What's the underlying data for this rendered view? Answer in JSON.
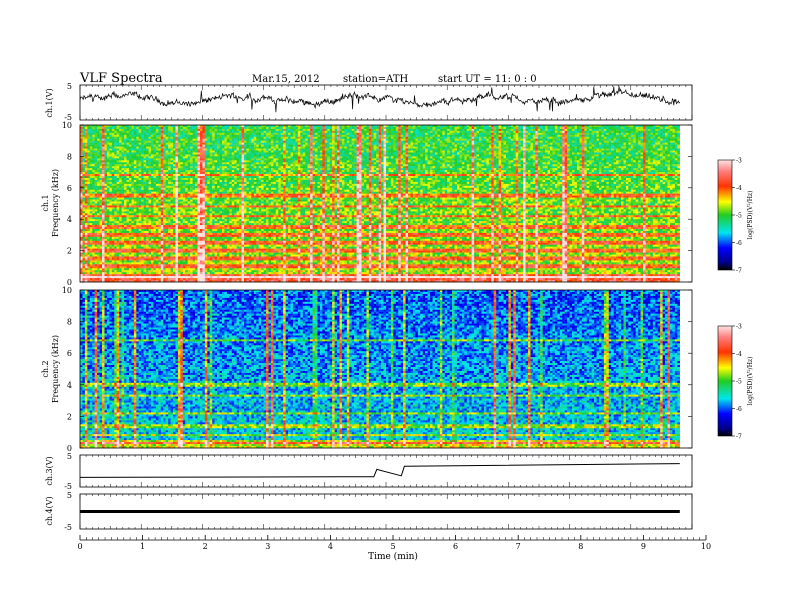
{
  "header": {
    "title": "VLF  Spectra",
    "date": "Mar.15, 2012",
    "station": "station=ATH",
    "start": "start  UT  =    11: 0  : 0"
  },
  "chart_data": [
    {
      "type": "line",
      "name": "ch1-waveform",
      "ylabel": "ch.1(V)",
      "ylim": [
        -5,
        5
      ],
      "yticks": [
        "5",
        "-5"
      ],
      "xlim": [
        0,
        10
      ]
    },
    {
      "type": "heatmap",
      "name": "ch1-spectrogram",
      "ylabel": "ch.1\nFrequency  (kHz)",
      "ylabel_lines": [
        "ch.1",
        "Frequency  (kHz)"
      ],
      "ylim": [
        0,
        10
      ],
      "yticks": [
        "0",
        "2",
        "4",
        "6",
        "8",
        "10"
      ],
      "xlim": [
        0,
        9.8
      ],
      "colorbar": {
        "label": "log(PSD)(V²/Hz)",
        "range": [
          -7,
          -3
        ],
        "ticks": [
          "-3",
          "-4",
          "-5",
          "-6",
          "-7"
        ]
      },
      "base_level": -4.7,
      "hum_bands_khz": [
        0.3,
        1.0,
        1.5,
        2.0,
        2.5,
        3.0,
        3.5,
        4.2,
        4.8,
        5.5,
        6.8
      ],
      "sferic_density": 0.6
    },
    {
      "type": "heatmap",
      "name": "ch2-spectrogram",
      "ylabel": "ch.2\nFrequency  (kHz)",
      "ylabel_lines": [
        "ch.2",
        "Frequency  (kHz)"
      ],
      "ylim": [
        0,
        10
      ],
      "yticks": [
        "0",
        "2",
        "4",
        "6",
        "8",
        "10"
      ],
      "xlim": [
        0,
        9.8
      ],
      "colorbar": {
        "label": "log(PSD)(V²/Hz)",
        "range": [
          -7,
          -3
        ],
        "ticks": [
          "-3",
          "-4",
          "-5",
          "-6",
          "-7"
        ]
      },
      "base_level": -5.6,
      "hum_bands_khz": [
        0.3,
        0.8,
        1.4,
        2.2,
        3.3,
        4.0,
        6.8
      ],
      "sferic_density": 0.5
    },
    {
      "type": "line",
      "name": "ch3-waveform",
      "ylabel": "ch.3(V)",
      "ylim": [
        -5,
        5
      ],
      "yticks": [
        "5",
        "-5"
      ],
      "xlim": [
        0,
        10
      ],
      "x": [
        0,
        4.3,
        4.8,
        4.85,
        5.25,
        5.3,
        9.8
      ],
      "y": [
        -2,
        -1.8,
        -1.8,
        0.5,
        -1.5,
        1.5,
        2.3
      ]
    },
    {
      "type": "line",
      "name": "ch4-waveform",
      "ylabel": "ch.4(V)",
      "ylim": [
        -5,
        5
      ],
      "yticks": [
        "5",
        "-5"
      ],
      "xlim": [
        0,
        10
      ],
      "x": [
        0,
        9.8
      ],
      "y": [
        0,
        0
      ],
      "xlabel": "Time  (min)",
      "xticks": [
        "0",
        "1",
        "2",
        "3",
        "4",
        "5",
        "6",
        "7",
        "8",
        "9",
        "10"
      ]
    }
  ]
}
